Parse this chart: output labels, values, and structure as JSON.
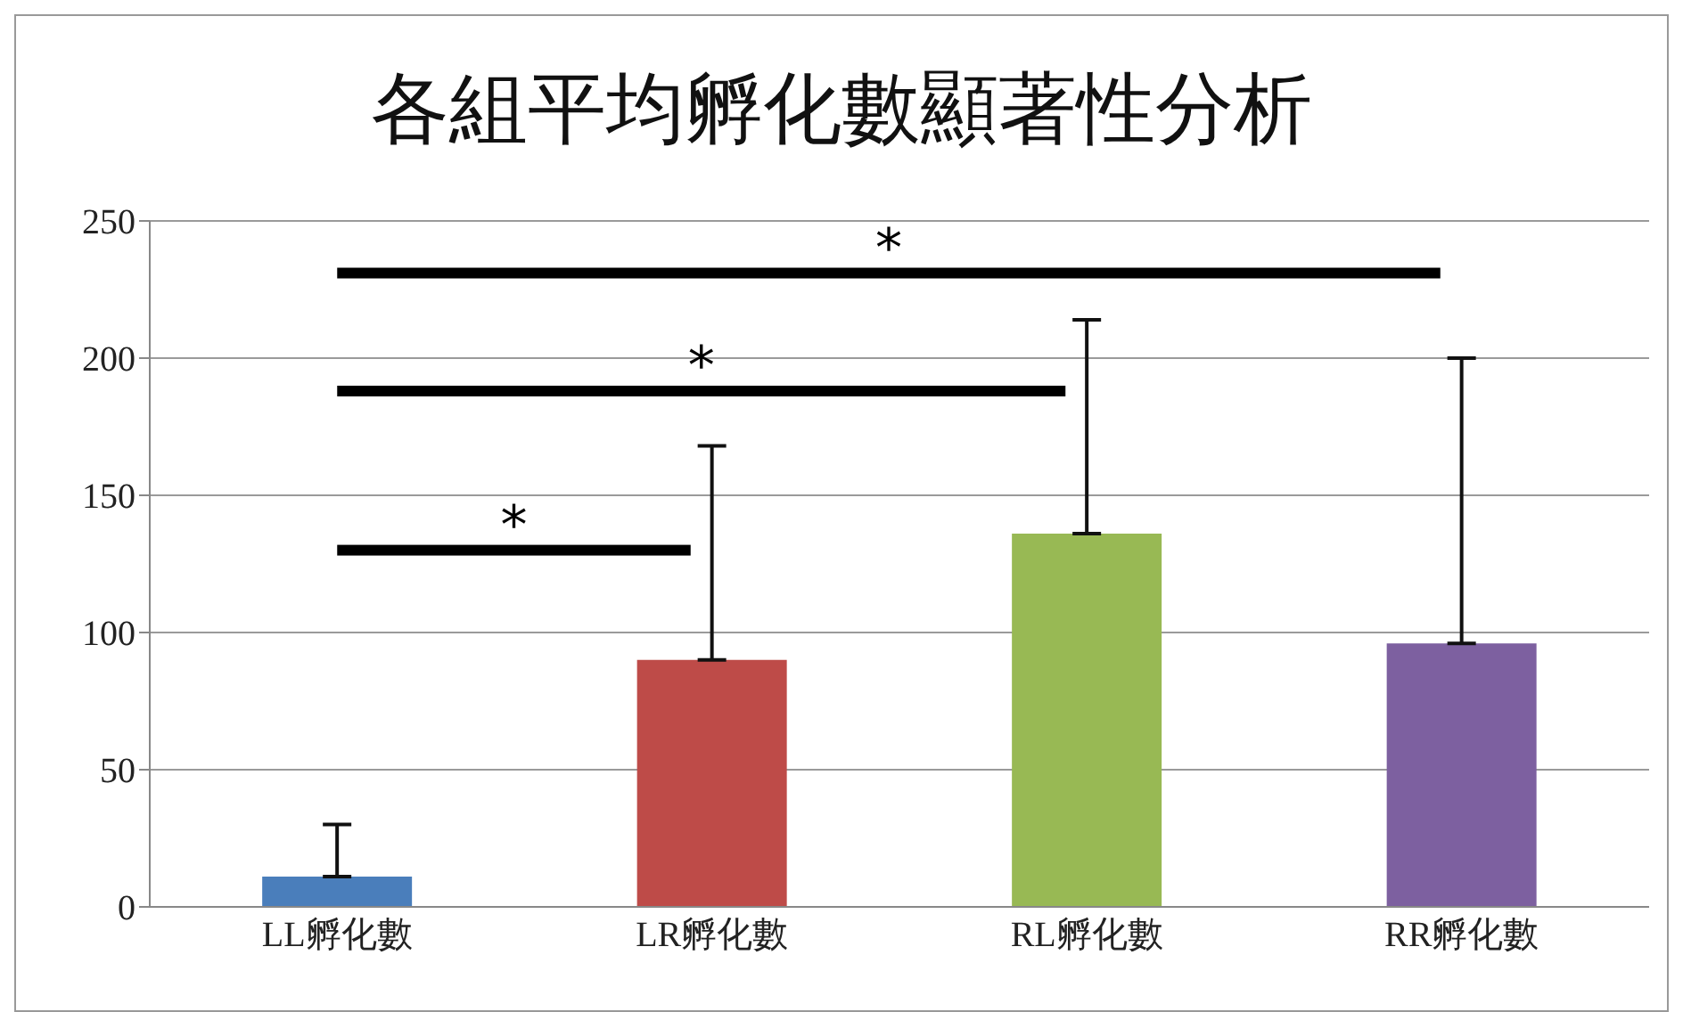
{
  "chart_data": {
    "type": "bar",
    "title": "各組平均孵化數顯著性分析",
    "categories": [
      "LL孵化數",
      "LR孵化數",
      "RL孵化數",
      "RR孵化數"
    ],
    "values": [
      11,
      90,
      136,
      96
    ],
    "colors": [
      "#4a7ebb",
      "#be4b48",
      "#98b954",
      "#7d60a0"
    ],
    "errors": [
      [
        11,
        30
      ],
      [
        90,
        168
      ],
      [
        136,
        214
      ],
      [
        96,
        200
      ]
    ],
    "ylim": [
      0,
      250
    ],
    "yticks": [
      0,
      50,
      100,
      150,
      200,
      250
    ],
    "grid": "y",
    "annotations": [
      "*",
      "*",
      "*"
    ]
  }
}
